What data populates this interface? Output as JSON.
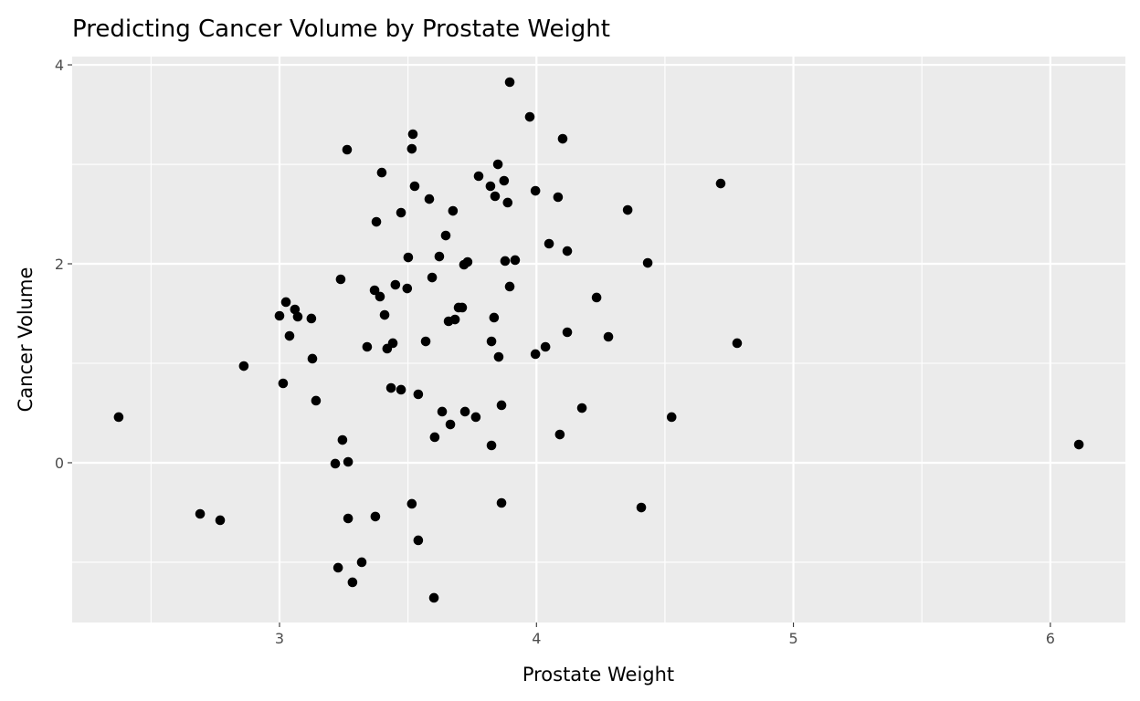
{
  "chart_data": {
    "type": "scatter",
    "title": "Predicting Cancer Volume by Prostate Weight",
    "xlabel": "Prostate Weight",
    "ylabel": "Cancer Volume",
    "xlim": [
      2.193,
      6.292
    ],
    "ylim": [
      -1.606,
      4.083
    ],
    "xticks": [
      3,
      4,
      5,
      6
    ],
    "xtick_labels": [
      "3",
      "4",
      "5",
      "6"
    ],
    "xminor": [
      2.5,
      3.5,
      4.5,
      5.5
    ],
    "yticks": [
      0,
      2,
      4
    ],
    "ytick_labels": [
      "0",
      "2",
      "4"
    ],
    "yminor": [
      -1,
      1,
      3
    ],
    "grid": true,
    "colors": {
      "panel": "#EBEBEB",
      "grid": "#FFFFFF",
      "point": "#000000"
    },
    "points": [
      [
        2.374,
        0.459
      ],
      [
        2.691,
        -0.514
      ],
      [
        2.769,
        -0.578
      ],
      [
        2.861,
        0.972
      ],
      [
        3.0,
        1.477
      ],
      [
        3.014,
        0.798
      ],
      [
        3.025,
        1.615
      ],
      [
        3.039,
        1.275
      ],
      [
        3.06,
        1.541
      ],
      [
        3.071,
        1.468
      ],
      [
        3.124,
        1.45
      ],
      [
        3.128,
        1.046
      ],
      [
        3.142,
        0.624
      ],
      [
        3.217,
        -0.009
      ],
      [
        3.228,
        -1.055
      ],
      [
        3.238,
        1.844
      ],
      [
        3.245,
        0.229
      ],
      [
        3.263,
        3.147
      ],
      [
        3.267,
        0.009
      ],
      [
        3.267,
        -0.56
      ],
      [
        3.284,
        -1.202
      ],
      [
        3.32,
        -1.0
      ],
      [
        3.341,
        1.165
      ],
      [
        3.37,
        1.734
      ],
      [
        3.373,
        -0.541
      ],
      [
        3.377,
        2.422
      ],
      [
        3.391,
        1.67
      ],
      [
        3.398,
        2.917
      ],
      [
        3.409,
        1.486
      ],
      [
        3.419,
        1.147
      ],
      [
        3.434,
        0.752
      ],
      [
        3.441,
        1.202
      ],
      [
        3.451,
        1.789
      ],
      [
        3.473,
        2.514
      ],
      [
        3.473,
        0.734
      ],
      [
        3.497,
        1.752
      ],
      [
        3.501,
        2.064
      ],
      [
        3.515,
        3.156
      ],
      [
        3.515,
        -0.413
      ],
      [
        3.519,
        3.303
      ],
      [
        3.526,
        2.78
      ],
      [
        3.54,
        0.688
      ],
      [
        3.54,
        -0.78
      ],
      [
        3.569,
        1.22
      ],
      [
        3.583,
        2.651
      ],
      [
        3.594,
        1.862
      ],
      [
        3.601,
        -1.358
      ],
      [
        3.604,
        0.257
      ],
      [
        3.622,
        2.073
      ],
      [
        3.633,
        0.514
      ],
      [
        3.647,
        2.284
      ],
      [
        3.658,
        1.422
      ],
      [
        3.665,
        0.385
      ],
      [
        3.675,
        2.532
      ],
      [
        3.683,
        1.44
      ],
      [
        3.697,
        1.56
      ],
      [
        3.711,
        1.56
      ],
      [
        3.718,
        1.991
      ],
      [
        3.722,
        0.514
      ],
      [
        3.732,
        2.018
      ],
      [
        3.764,
        0.459
      ],
      [
        3.775,
        2.881
      ],
      [
        3.821,
        2.78
      ],
      [
        3.825,
        1.22
      ],
      [
        3.825,
        0.174
      ],
      [
        3.835,
        1.459
      ],
      [
        3.839,
        2.679
      ],
      [
        3.85,
        3.0
      ],
      [
        3.853,
        1.064
      ],
      [
        3.864,
        0.578
      ],
      [
        3.864,
        -0.404
      ],
      [
        3.874,
        2.835
      ],
      [
        3.878,
        2.028
      ],
      [
        3.888,
        2.615
      ],
      [
        3.896,
        3.826
      ],
      [
        3.896,
        1.771
      ],
      [
        3.917,
        2.037
      ],
      [
        3.974,
        3.477
      ],
      [
        3.996,
        2.734
      ],
      [
        3.996,
        1.092
      ],
      [
        4.035,
        1.165
      ],
      [
        4.049,
        2.202
      ],
      [
        4.084,
        2.67
      ],
      [
        4.091,
        0.284
      ],
      [
        4.102,
        3.257
      ],
      [
        4.12,
        1.312
      ],
      [
        4.12,
        2.128
      ],
      [
        4.177,
        0.55
      ],
      [
        4.234,
        1.661
      ],
      [
        4.28,
        1.266
      ],
      [
        4.355,
        2.541
      ],
      [
        4.408,
        -0.45
      ],
      [
        4.433,
        2.009
      ],
      [
        4.526,
        0.459
      ],
      [
        4.717,
        2.807
      ],
      [
        4.781,
        1.202
      ],
      [
        6.111,
        0.183
      ]
    ]
  }
}
